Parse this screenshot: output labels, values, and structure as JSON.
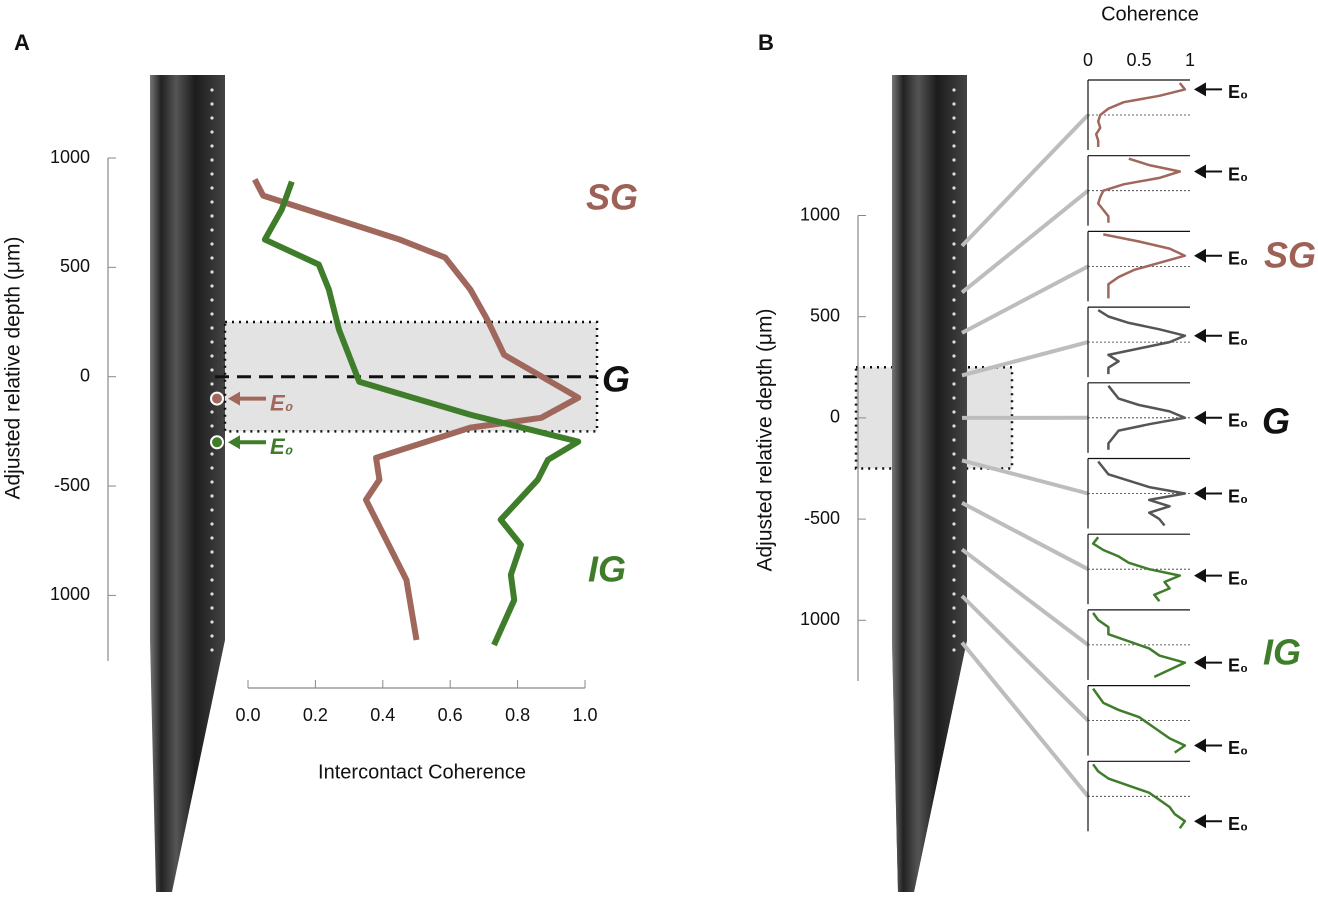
{
  "chart_data": [
    {
      "type": "line",
      "panel_label": "A",
      "ylabel": "Adjusted relative depth (μm)",
      "xlabel": "Intercontact Coherence",
      "xlim": [
        0,
        1
      ],
      "xticks": [
        {
          "value": 0,
          "label": "0.0"
        },
        {
          "value": 0.2,
          "label": "0.2"
        },
        {
          "value": 0.4,
          "label": "0.4"
        },
        {
          "value": 0.6,
          "label": "0.6"
        },
        {
          "value": 0.8,
          "label": "0.8"
        },
        {
          "value": 1,
          "label": "1.0"
        }
      ],
      "ylim": [
        -1300,
        1000
      ],
      "yticks": [
        1000,
        500,
        0,
        -500,
        {
          "value": -1000,
          "label": "1000"
        }
      ],
      "shaded_range": [
        -250,
        250
      ],
      "reference_line": 0,
      "regions": [
        {
          "text": "SG",
          "color": "#9e6156"
        },
        {
          "text": "G",
          "color": "#111111"
        },
        {
          "text": "IG",
          "color": "#3f7d2b"
        }
      ],
      "series": [
        {
          "color": "#a0685c",
          "e0_depth": -100,
          "e0_label": "E₀",
          "x": [
            0.02,
            0.045,
            0.45,
            0.585,
            0.66,
            0.71,
            0.76,
            0.98,
            0.87,
            0.66,
            0.38,
            0.39,
            0.35,
            0.47,
            0.5
          ],
          "values": [
            902,
            828,
            627,
            545,
            398,
            261,
            100,
            -96,
            -188,
            -233,
            -371,
            -471,
            -563,
            -929,
            -1204
          ]
        },
        {
          "color": "#3f7d2b",
          "e0_depth": -300,
          "e0_label": "E₀",
          "x": [
            0.13,
            0.1,
            0.05,
            0.21,
            0.24,
            0.27,
            0.33,
            0.66,
            0.98,
            0.89,
            0.86,
            0.75,
            0.81,
            0.78,
            0.79,
            0.73
          ],
          "values": [
            892,
            764,
            627,
            513,
            398,
            215,
            -23,
            -174,
            -297,
            -380,
            -471,
            -654,
            -769,
            -906,
            -1021,
            -1227
          ]
        }
      ]
    },
    {
      "type": "small_multiples",
      "panel_label": "B",
      "ylabel": "Adjusted relative depth (μm)",
      "xlabel": "Coherence",
      "xlim": [
        0,
        1
      ],
      "xticks": [
        0,
        0.5,
        1
      ],
      "ylim": [
        -1300,
        1000
      ],
      "yticks": [
        1000,
        500,
        0,
        -500,
        {
          "value": -1000,
          "label": "1000"
        }
      ],
      "shaded_range": [
        -250,
        250
      ],
      "e0_label": "E₀",
      "regions": [
        {
          "text": "SG",
          "color": "#9e6156"
        },
        {
          "text": "G",
          "color": "#111111"
        },
        {
          "text": "IG",
          "color": "#3f7d2b"
        }
      ],
      "panels": [
        {
          "color": "#a0685c",
          "depth": 850,
          "values": [
            0.9,
            0.95,
            0.7,
            0.35,
            0.2,
            0.12,
            0.1,
            0.12,
            0.08,
            0.1,
            0.1
          ]
        },
        {
          "color": "#a0685c",
          "depth": 620,
          "values": [
            0.4,
            0.6,
            0.9,
            0.7,
            0.35,
            0.15,
            0.12,
            0.1,
            0.15,
            0.2,
            0.2
          ]
        },
        {
          "color": "#a0685c",
          "depth": 420,
          "values": [
            0.15,
            0.5,
            0.8,
            0.95,
            0.7,
            0.45,
            0.3,
            0.2,
            0.2,
            0.2
          ]
        },
        {
          "color": "#555555",
          "depth": 210,
          "values": [
            0.1,
            0.2,
            0.4,
            0.7,
            0.95,
            0.8,
            0.5,
            0.2,
            0.3,
            0.2,
            0.2
          ]
        },
        {
          "color": "#555555",
          "depth": 0,
          "values": [
            0.2,
            0.25,
            0.3,
            0.5,
            0.8,
            0.95,
            0.6,
            0.3,
            0.25,
            0.2,
            0.2
          ]
        },
        {
          "color": "#555555",
          "depth": -210,
          "values": [
            0.1,
            0.15,
            0.2,
            0.4,
            0.6,
            0.95,
            0.6,
            0.8,
            0.6,
            0.7,
            0.75
          ]
        },
        {
          "color": "#3f7d2b",
          "depth": -420,
          "values": [
            0.1,
            0.05,
            0.15,
            0.3,
            0.4,
            0.6,
            0.9,
            0.75,
            0.8,
            0.65,
            0.7
          ]
        },
        {
          "color": "#3f7d2b",
          "depth": -650,
          "values": [
            0.05,
            0.1,
            0.2,
            0.2,
            0.4,
            0.6,
            0.7,
            0.95,
            0.8,
            0.65
          ]
        },
        {
          "color": "#3f7d2b",
          "depth": -880,
          "values": [
            0.05,
            0.1,
            0.15,
            0.3,
            0.5,
            0.6,
            0.7,
            0.8,
            0.95,
            0.85
          ]
        },
        {
          "color": "#3f7d2b",
          "depth": -1110,
          "values": [
            0.05,
            0.1,
            0.2,
            0.4,
            0.6,
            0.7,
            0.8,
            0.85,
            0.95,
            0.9
          ]
        }
      ]
    }
  ]
}
